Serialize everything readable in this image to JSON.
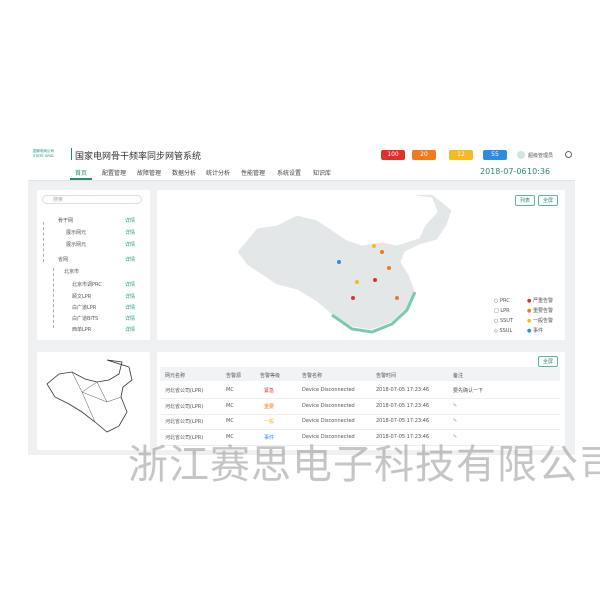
{
  "header": {
    "logo_cn": "国家电网公司",
    "logo_en": "STATE GRID",
    "title": "国家电网骨干频率同步网管系统",
    "alarm_counts": [
      "100",
      "20",
      "12",
      "55"
    ],
    "user": "超级管理员"
  },
  "nav": {
    "items": [
      "首页",
      "配置管理",
      "故障管理",
      "数据分析",
      "统计分析",
      "性能管理",
      "系统设置",
      "知识库"
    ],
    "date": "2018-07-06",
    "time": "10:36"
  },
  "tree": {
    "search_placeholder": "搜索",
    "nodes": [
      {
        "label": "骨干网",
        "action": "详情"
      },
      {
        "label": "展示网元",
        "action": "详情"
      },
      {
        "label": "展示网元",
        "action": "详情"
      },
      {
        "label": "省网",
        "action": "详情"
      },
      {
        "label": "北京市"
      },
      {
        "label": "北京市调PRC",
        "action": "详情"
      },
      {
        "label": "颐文LPR",
        "action": "详情"
      },
      {
        "label": "白广道LPR",
        "action": "详情"
      },
      {
        "label": "白广道BITS",
        "action": "详情"
      },
      {
        "label": "西单LPR",
        "action": "详情"
      }
    ]
  },
  "map": {
    "buttons": [
      "列表",
      "全屏"
    ],
    "legend_types": [
      "PRC",
      "LPR",
      "SSUT",
      "SSUL"
    ],
    "legend_levels": [
      "严重告警",
      "重要告警",
      "一般告警",
      "事件"
    ]
  },
  "table": {
    "button": "全屏",
    "columns": [
      "网元名称",
      "告警源",
      "告警等级",
      "告警名称",
      "告警时间",
      "备注"
    ],
    "rows": [
      {
        "name": "河北省公司(LPR)",
        "source": "MC",
        "level": "紧急",
        "alarm": "Device Disconnected",
        "time": "2018-07-05 17:23:46",
        "note": "要先确认一下"
      },
      {
        "name": "河北省公司(LPR)",
        "source": "MC",
        "level": "重要",
        "alarm": "Device Disconnected",
        "time": "2018-07-05 17:23:46"
      },
      {
        "name": "河北省公司(LPR)",
        "source": "MC",
        "level": "一般",
        "alarm": "Device Disconnected",
        "time": "2018-07-05 17:23:46"
      },
      {
        "name": "河北省公司(LPR)",
        "source": "MC",
        "level": "事件",
        "alarm": "Device Disconnected",
        "time": "2018-07-05 17:23:46"
      }
    ]
  },
  "watermark": "浙江赛思电子科技有限公司"
}
